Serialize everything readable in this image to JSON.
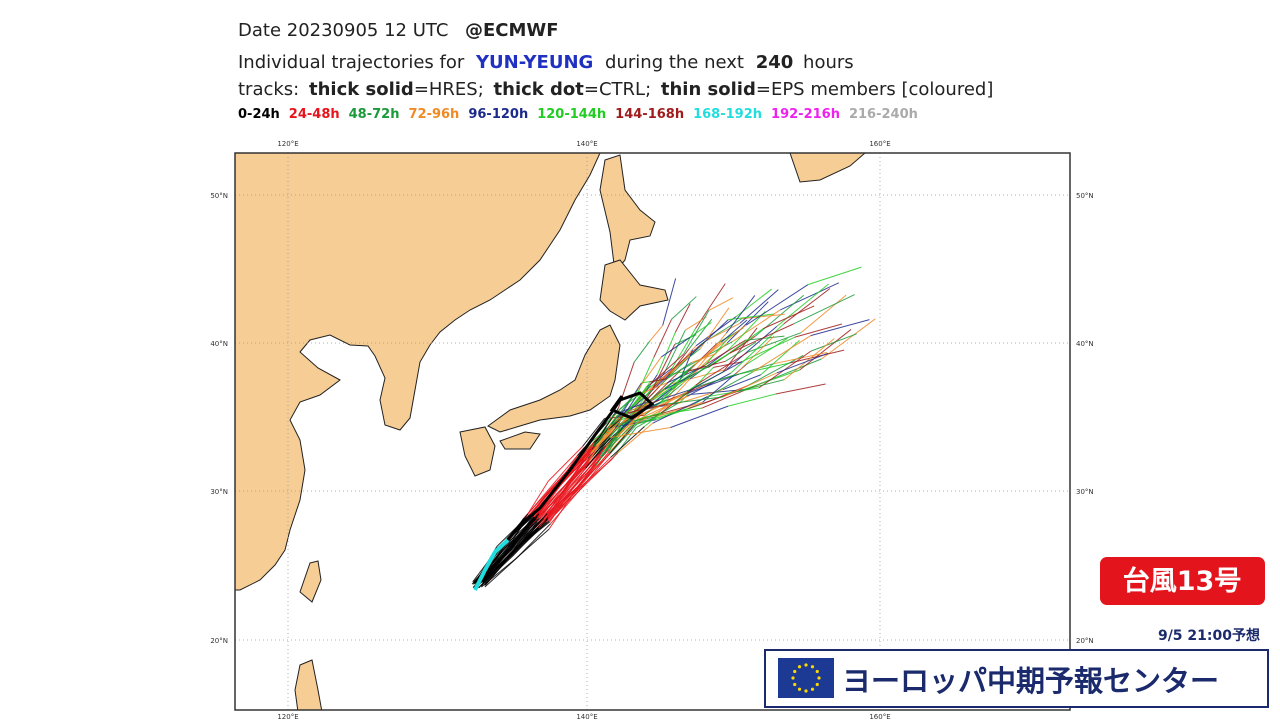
{
  "header": {
    "date": "Date 20230905 12 UTC",
    "source": "@ECMWF",
    "line2": [
      "Individual trajectories for",
      "YUN-YEUNG",
      "during the next",
      "240",
      "hours"
    ],
    "line3": [
      "tracks:",
      "thick solid",
      "=HRES;",
      "thick dot",
      "=CTRL;",
      "thin solid",
      "=EPS members [coloured]"
    ]
  },
  "legend": [
    {
      "label": "0-24h",
      "color": "#000000"
    },
    {
      "label": "24-48h",
      "color": "#e8141c"
    },
    {
      "label": "48-72h",
      "color": "#1a9a3a"
    },
    {
      "label": "72-96h",
      "color": "#f08a24"
    },
    {
      "label": "96-120h",
      "color": "#1c2a8c"
    },
    {
      "label": "120-144h",
      "color": "#22cc22"
    },
    {
      "label": "144-168h",
      "color": "#a01c1c"
    },
    {
      "label": "168-192h",
      "color": "#22dddd"
    },
    {
      "label": "192-216h",
      "color": "#ee22ee"
    },
    {
      "label": "216-240h",
      "color": "#aaaaaa"
    }
  ],
  "map": {
    "longitudes": [
      "120°E",
      "140°E",
      "160°E"
    ],
    "latitudes": [
      "50°N",
      "40°N",
      "30°N",
      "20°N"
    ]
  },
  "badge": "台風13号",
  "forecast_time": "9/5 21:00予想",
  "banner": "ヨーロッパ中期予報センター"
}
